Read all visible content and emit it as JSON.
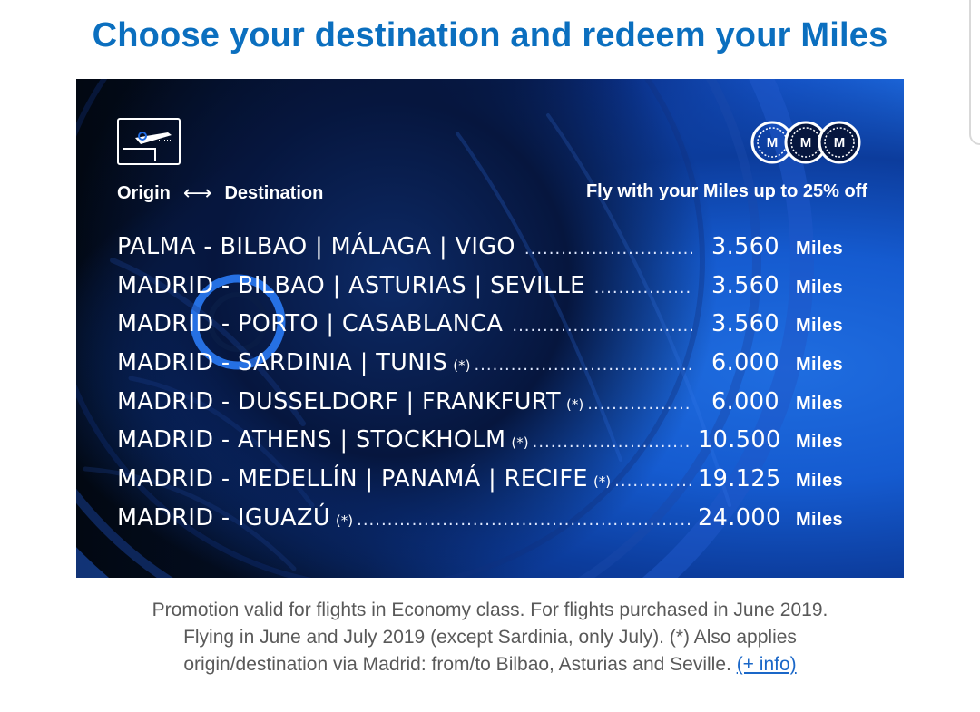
{
  "headline": "Choose your destination and redeem your Miles",
  "banner": {
    "origin_label": "Origin",
    "arrow": "⟷",
    "destination_label": "Destination",
    "promo": "Fly with your Miles up to 25% off",
    "coin_letter": "M",
    "dots": "...................................................................",
    "routes": [
      {
        "name": "PALMA - BILBAO | MÁLAGA | VIGO",
        "ast": "",
        "amount": "3.560",
        "unit": "Miles"
      },
      {
        "name": "MADRID - BILBAO | ASTURIAS | SEVILLE",
        "ast": "",
        "amount": "3.560",
        "unit": "Miles"
      },
      {
        "name": "MADRID - PORTO | CASABLANCA",
        "ast": "",
        "amount": "3.560",
        "unit": "Miles"
      },
      {
        "name": "MADRID - SARDINIA | TUNIS",
        "ast": "(*)",
        "amount": "6.000",
        "unit": "Miles"
      },
      {
        "name": "MADRID - DUSSELDORF | FRANKFURT",
        "ast": "(*)",
        "amount": "6.000",
        "unit": "Miles"
      },
      {
        "name": "MADRID - ATHENS | STOCKHOLM",
        "ast": "(*)",
        "amount": "10.500",
        "unit": "Miles"
      },
      {
        "name": "MADRID - MEDELLÍN | PANAMÁ | RECIFE",
        "ast": "(*)",
        "amount": "19.125",
        "unit": "Miles"
      },
      {
        "name": "MADRID - IGUAZÚ",
        "ast": "(*)",
        "amount": "24.000",
        "unit": "Miles"
      }
    ]
  },
  "footnote": {
    "line1": "Promotion valid for flights in Economy class. For flights purchased in June 2019.",
    "line2": "Flying in June and July 2019 (except Sardinia, only July). (*) Also applies",
    "line3": "origin/destination via Madrid: from/to Bilbao, Asturias and Seville.",
    "link": "(+ info)"
  },
  "colors": {
    "headline": "#0b6fbf",
    "banner_dark": "#04102a",
    "banner_blue": "#1d6ae0",
    "link": "#1a67c8",
    "footnote_text": "#595959"
  },
  "icons": [
    "boarding-card-icon",
    "miles-coins-icon",
    "bidirectional-arrow-icon"
  ]
}
